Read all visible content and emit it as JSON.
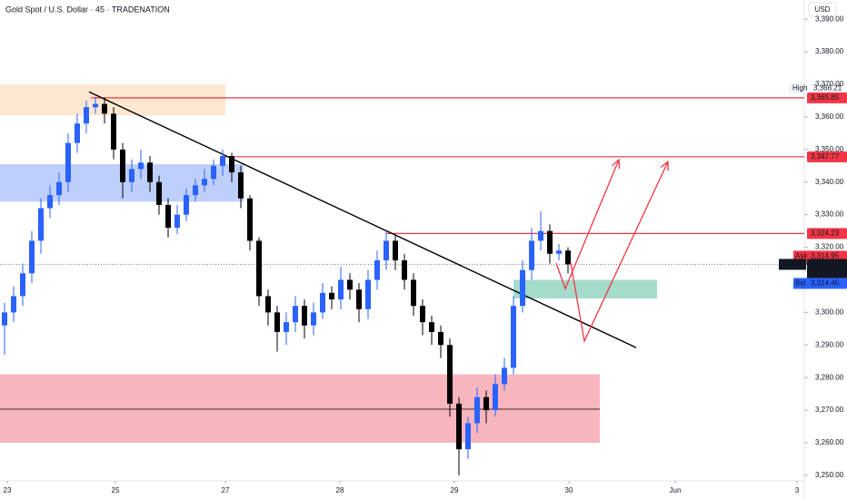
{
  "chart_data": {
    "type": "candlestick",
    "title": "Gold Spot / U.S. Dollar · 45 · TRADENATION",
    "currency": "USD",
    "xlim": [
      -0.5,
      88
    ],
    "xticks": [
      {
        "value": 0.3,
        "label": "23"
      },
      {
        "value": 12.2,
        "label": "25"
      },
      {
        "value": 24.3,
        "label": "27"
      },
      {
        "value": 36.9,
        "label": "28"
      },
      {
        "value": 49.5,
        "label": "29"
      },
      {
        "value": 62.1,
        "label": "30"
      },
      {
        "value": 73.8,
        "label": "Jun"
      },
      {
        "value": 87.2,
        "label": "3"
      }
    ],
    "ylim": [
      3248.3,
      3395.9
    ],
    "yticks": [
      {
        "value": 3250,
        "label": "3,250.00"
      },
      {
        "value": 3260,
        "label": "3,260.00"
      },
      {
        "value": 3270,
        "label": "3,270.00"
      },
      {
        "value": 3280,
        "label": "3,280.00"
      },
      {
        "value": 3290,
        "label": "3,290.00"
      },
      {
        "value": 3300,
        "label": "3,300.00"
      },
      {
        "value": 3310,
        "label": "3,310.00"
      },
      {
        "value": 3320,
        "label": "3,320.00"
      },
      {
        "value": 3330,
        "label": "3,330.00"
      },
      {
        "value": 3340,
        "label": "3,340.00"
      },
      {
        "value": 3350,
        "label": "3,350.00"
      },
      {
        "value": 3360,
        "label": "3,360.00"
      },
      {
        "value": 3370,
        "label": "3,370.00"
      },
      {
        "value": 3380,
        "label": "3,380.00"
      },
      {
        "value": 3390,
        "label": "3,390.00"
      }
    ],
    "grid": false,
    "up_color": "#2962ff",
    "down_color": "#000000",
    "open": [
      3296,
      3300,
      3305,
      3312,
      3322,
      3332,
      3336,
      3340,
      3352,
      3358,
      3363,
      3364,
      3361,
      3350,
      3340,
      3344,
      3346,
      3340,
      3333,
      3326,
      3330,
      3336,
      3339,
      3341,
      3345,
      3348,
      3343,
      3335,
      3322,
      3305,
      3300,
      3294,
      3297,
      3302,
      3296,
      3300,
      3306,
      3304,
      3310,
      3307,
      3301,
      3310,
      3316,
      3322,
      3316,
      3310,
      3302,
      3297,
      3294,
      3290,
      3272,
      3258,
      3266,
      3274,
      3270,
      3278,
      3283,
      3302,
      3313,
      3322,
      3325,
      3318,
      3319
    ],
    "high": [
      3303,
      3308,
      3315,
      3325,
      3335,
      3339,
      3343,
      3355,
      3361,
      3365,
      3366.21,
      3366,
      3363,
      3352,
      3347,
      3350,
      3348,
      3342,
      3335,
      3333,
      3338,
      3341,
      3344,
      3347,
      3350,
      3349,
      3345,
      3336,
      3323,
      3307,
      3302,
      3300,
      3305,
      3304,
      3303,
      3309,
      3308,
      3314,
      3312,
      3309,
      3313,
      3319,
      3325,
      3324,
      3318,
      3312,
      3304,
      3299,
      3296,
      3292,
      3274,
      3268,
      3277,
      3276,
      3281,
      3286,
      3305,
      3316,
      3326,
      3331,
      3327,
      3321,
      3320
    ],
    "low": [
      3287,
      3297,
      3302,
      3309,
      3318,
      3329,
      3333,
      3337,
      3349,
      3355,
      3361,
      3358,
      3347,
      3335,
      3337,
      3341,
      3337,
      3330,
      3323,
      3324,
      3328,
      3334,
      3337,
      3339,
      3342,
      3340,
      3332,
      3319,
      3302,
      3296,
      3288,
      3290,
      3294,
      3292,
      3293,
      3298,
      3301,
      3301,
      3304,
      3297,
      3298,
      3307,
      3313,
      3313,
      3307,
      3299,
      3293,
      3290,
      3286,
      3268,
      3250,
      3255,
      3263,
      3266,
      3268,
      3276,
      3281,
      3300,
      3310,
      3319,
      3315,
      3316,
      3312
    ],
    "close": [
      3300,
      3305,
      3312,
      3322,
      3332,
      3336,
      3340,
      3352,
      3358,
      3363,
      3364,
      3361,
      3350,
      3340,
      3344,
      3346,
      3340,
      3333,
      3326,
      3330,
      3336,
      3339,
      3341,
      3345,
      3348,
      3343,
      3335,
      3322,
      3305,
      3300,
      3294,
      3297,
      3302,
      3296,
      3300,
      3306,
      3304,
      3310,
      3307,
      3301,
      3310,
      3316,
      3322,
      3316,
      3310,
      3302,
      3297,
      3294,
      3290,
      3272,
      3258,
      3266,
      3274,
      3270,
      3278,
      3283,
      3302,
      3313,
      3322,
      3325,
      3318,
      3319,
      3314.75
    ],
    "zones": [
      {
        "from": -0.5,
        "to": 24.3,
        "top": 3370,
        "bottom": 3360.5,
        "color": "#fde3c8"
      },
      {
        "from": -0.5,
        "to": 26.3,
        "top": 3345.5,
        "bottom": 3334,
        "color": "#b3c7fb"
      },
      {
        "from": -0.5,
        "to": 65.5,
        "top": 3281,
        "bottom": 3260,
        "color": "#f6a8b1",
        "midline": 3270.3
      },
      {
        "from": 56,
        "to": 71.8,
        "top": 3310,
        "bottom": 3304.3,
        "color": "#95d5c2"
      }
    ],
    "level_color": "#f23645",
    "levels": [
      {
        "value": 3365.85,
        "label": "3,365.85",
        "from": 9.5
      },
      {
        "value": 3347.77,
        "label": "3,347.77",
        "from": 24.3
      },
      {
        "value": 3324.23,
        "label": "3,324.23",
        "from": 42
      }
    ],
    "trendline": {
      "x": [
        9.3,
        69.5
      ],
      "y": [
        3367.7,
        3289.2
      ]
    },
    "projections": [
      {
        "x": [
          60.7,
          61.7,
          67.6
        ],
        "y": [
          3315.1,
          3307.3,
          3346.9
        ]
      },
      {
        "x": [
          62.3,
          63.8,
          73
        ],
        "y": [
          3315.1,
          3291.2,
          3346.3
        ]
      }
    ],
    "high_marker": {
      "tag": "High",
      "value": 3366.21,
      "label": "3,366.21"
    },
    "quote": {
      "symbol": "XAUUSD",
      "value": 3314.75,
      "label": "3,314.75",
      "countdown": "18:24",
      "ask": {
        "tag": "Ask",
        "value": 3314.95,
        "label": "3,314.95"
      },
      "bid": {
        "tag": "Bid",
        "value": 3314.45,
        "label": "3,314.45"
      }
    }
  }
}
